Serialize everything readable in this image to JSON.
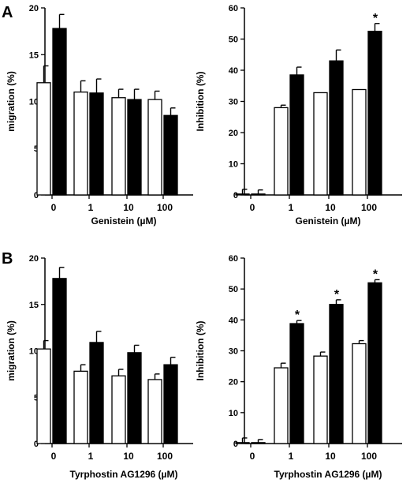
{
  "panel_labels": [
    "A",
    "B"
  ],
  "chart_data": [
    {
      "type": "bar",
      "panel": "A",
      "xlabel": "Genistein  (µM)",
      "ylabel": "migration  (%)",
      "ylim": [
        0,
        20
      ],
      "yticks": [
        "0",
        "5",
        "10",
        "15",
        "20"
      ],
      "categories": [
        "0",
        "1",
        "10",
        "100"
      ],
      "series": [
        {
          "fill": "#ffffff",
          "values": [
            12.0,
            11.0,
            10.4,
            10.2
          ],
          "errors": [
            1.8,
            1.2,
            0.9,
            0.9
          ]
        },
        {
          "fill": "#000000",
          "values": [
            17.8,
            10.9,
            10.2,
            8.5
          ],
          "errors": [
            1.5,
            1.5,
            1.1,
            0.8
          ]
        }
      ],
      "annotations": [
        "",
        "",
        "",
        ""
      ]
    },
    {
      "type": "bar",
      "panel": "A",
      "xlabel": "Genistein  (µM)",
      "ylabel": "Inhibition  (%)",
      "ylim": [
        0,
        60
      ],
      "yticks": [
        "0",
        "10",
        "20",
        "30",
        "40",
        "50",
        "60"
      ],
      "categories": [
        "0",
        "1",
        "10",
        "100"
      ],
      "series": [
        {
          "fill": "#ffffff",
          "values": [
            0.3,
            28.0,
            32.8,
            33.8
          ],
          "errors": [
            1.5,
            0.8,
            0,
            0
          ]
        },
        {
          "fill": "#000000",
          "values": [
            0.3,
            38.5,
            43.0,
            52.5
          ],
          "errors": [
            1.3,
            2.5,
            3.5,
            2.5
          ]
        }
      ],
      "annotations": [
        "",
        "",
        "",
        "*"
      ]
    },
    {
      "type": "bar",
      "panel": "B",
      "xlabel": "Tyrphostin  AG1296  (µM)",
      "ylabel": "migration  (%)",
      "ylim": [
        0,
        20
      ],
      "yticks": [
        "0",
        "5",
        "10",
        "15",
        "20"
      ],
      "categories": [
        "0",
        "1",
        "10",
        "100"
      ],
      "series": [
        {
          "fill": "#ffffff",
          "values": [
            10.2,
            7.8,
            7.3,
            6.9
          ],
          "errors": [
            0.9,
            0.7,
            0.7,
            0.6
          ]
        },
        {
          "fill": "#000000",
          "values": [
            17.8,
            10.9,
            9.8,
            8.5
          ],
          "errors": [
            1.2,
            1.2,
            0.8,
            0.8
          ]
        }
      ],
      "annotations": [
        "",
        "",
        "",
        ""
      ]
    },
    {
      "type": "bar",
      "panel": "B",
      "xlabel": "Tyrphostin  AG1296  (µM)",
      "ylabel": "Inhibition  (%)",
      "ylim": [
        0,
        60
      ],
      "yticks": [
        "0",
        "10",
        "20",
        "30",
        "40",
        "50",
        "60"
      ],
      "categories": [
        "0",
        "1",
        "10",
        "100"
      ],
      "series": [
        {
          "fill": "#ffffff",
          "values": [
            0.3,
            24.5,
            28.3,
            32.3
          ],
          "errors": [
            1.5,
            1.5,
            1.3,
            1.0
          ]
        },
        {
          "fill": "#000000",
          "values": [
            0.3,
            38.8,
            45.0,
            52.0
          ],
          "errors": [
            1.0,
            1.0,
            1.5,
            1.0
          ]
        }
      ],
      "annotations": [
        "",
        "*",
        "*",
        "*"
      ]
    }
  ]
}
